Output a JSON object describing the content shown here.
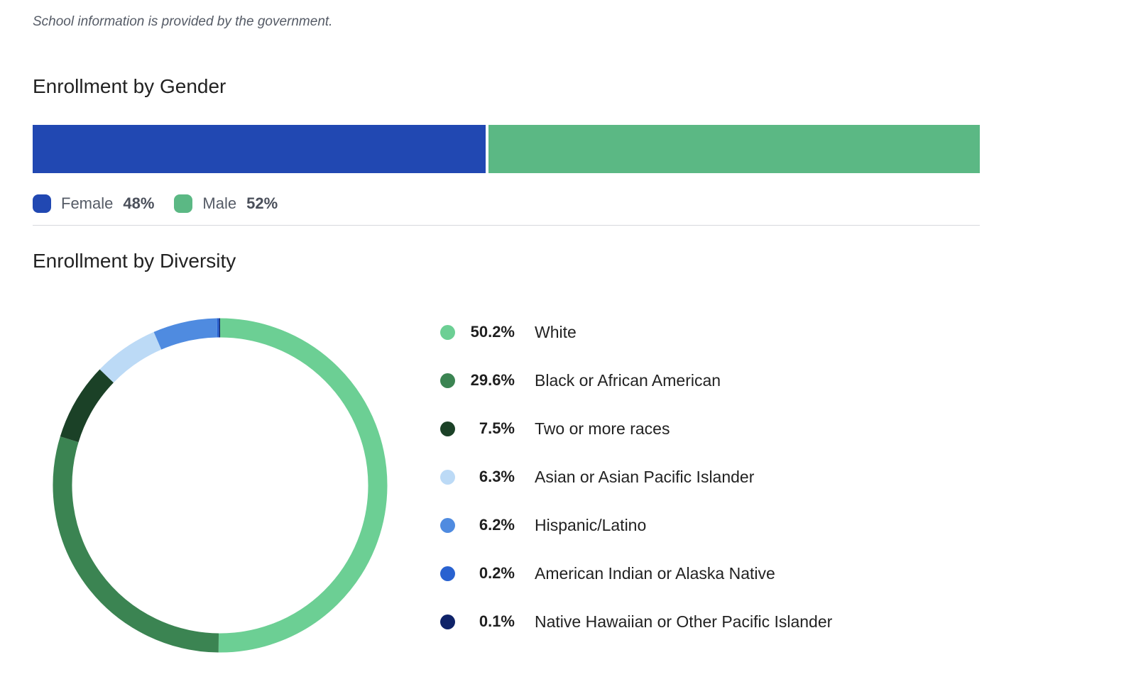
{
  "disclaimer": "School information is provided by the government.",
  "gender": {
    "heading": "Enrollment by Gender",
    "segments": [
      {
        "label": "Female",
        "value_text": "48%",
        "value": 48,
        "color": "#2148b2"
      },
      {
        "label": "Male",
        "value_text": "52%",
        "value": 52,
        "color": "#5bb884"
      }
    ]
  },
  "diversity": {
    "heading": "Enrollment by Diversity",
    "items": [
      {
        "pct": "50.2%",
        "label": "White",
        "color": "#6ccf94"
      },
      {
        "pct": "29.6%",
        "label": "Black or African American",
        "color": "#3b8452"
      },
      {
        "pct": "7.5%",
        "label": "Two or more races",
        "color": "#1b4127"
      },
      {
        "pct": "6.3%",
        "label": "Asian or Asian Pacific Islander",
        "color": "#bcdaf6"
      },
      {
        "pct": "6.2%",
        "label": "Hispanic/Latino",
        "color": "#4f8be0"
      },
      {
        "pct": "0.2%",
        "label": "American Indian or Alaska Native",
        "color": "#2962d0"
      },
      {
        "pct": "0.1%",
        "label": "Native Hawaiian or Other Pacific Islander",
        "color": "#0f2369"
      }
    ]
  },
  "chart_data": [
    {
      "type": "bar",
      "title": "Enrollment by Gender",
      "categories": [
        "Female",
        "Male"
      ],
      "values": [
        48,
        52
      ]
    },
    {
      "type": "pie",
      "title": "Enrollment by Diversity",
      "categories": [
        "White",
        "Black or African American",
        "Two or more races",
        "Asian or Asian Pacific Islander",
        "Hispanic/Latino",
        "American Indian or Alaska Native",
        "Native Hawaiian or Other Pacific Islander"
      ],
      "values": [
        50.2,
        29.6,
        7.5,
        6.3,
        6.2,
        0.2,
        0.1
      ]
    }
  ]
}
